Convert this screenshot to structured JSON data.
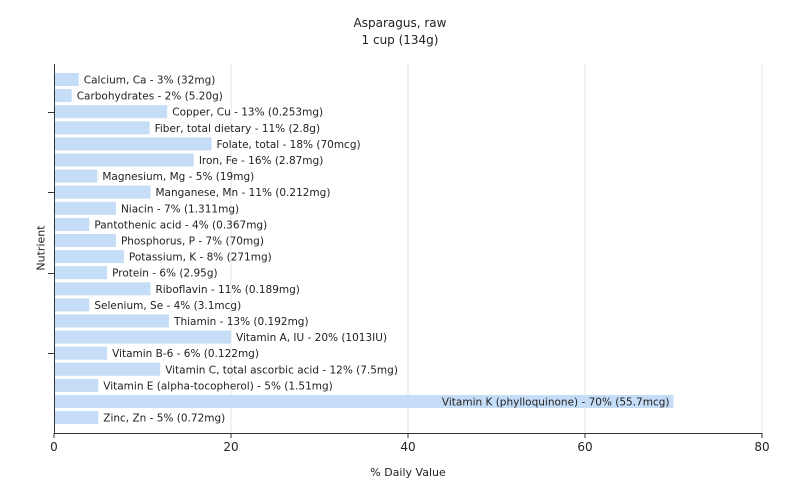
{
  "chart_data": {
    "type": "bar",
    "orientation": "horizontal",
    "title": "Asparagus, raw",
    "subtitle": "1 cup (134g)",
    "xlabel": "% Daily Value",
    "ylabel": "Nutrient",
    "xlim": [
      0,
      80
    ],
    "xticks": [
      0,
      20,
      40,
      60,
      80
    ],
    "grid": true,
    "bar_color": "#c6ddf7",
    "categories": [
      "Calcium, Ca - 3% (32mg)",
      "Carbohydrates - 2% (5.20g)",
      "Copper, Cu - 13% (0.253mg)",
      "Fiber, total dietary - 11% (2.8g)",
      "Folate, total - 18% (70mcg)",
      "Iron, Fe - 16% (2.87mg)",
      "Magnesium, Mg - 5% (19mg)",
      "Manganese, Mn - 11% (0.212mg)",
      "Niacin - 7% (1.311mg)",
      "Pantothenic acid - 4% (0.367mg)",
      "Phosphorus, P - 7% (70mg)",
      "Potassium, K - 8% (271mg)",
      "Protein - 6% (2.95g)",
      "Riboflavin - 11% (0.189mg)",
      "Selenium, Se - 4% (3.1mcg)",
      "Thiamin - 13% (0.192mg)",
      "Vitamin A, IU - 20% (1013IU)",
      "Vitamin B-6 - 6% (0.122mg)",
      "Vitamin C, total ascorbic acid - 12% (7.5mg)",
      "Vitamin E (alpha-tocopherol) - 5% (1.51mg)",
      "Vitamin K (phylloquinone) - 70% (55.7mcg)",
      "Zinc, Zn - 5% (0.72mg)"
    ],
    "values": [
      2.8,
      2.0,
      12.8,
      10.8,
      17.8,
      15.8,
      4.9,
      10.9,
      7.0,
      4.0,
      7.0,
      7.9,
      6.0,
      10.9,
      4.0,
      13.0,
      20.0,
      6.0,
      12.0,
      5.0,
      70.0,
      5.0
    ]
  }
}
